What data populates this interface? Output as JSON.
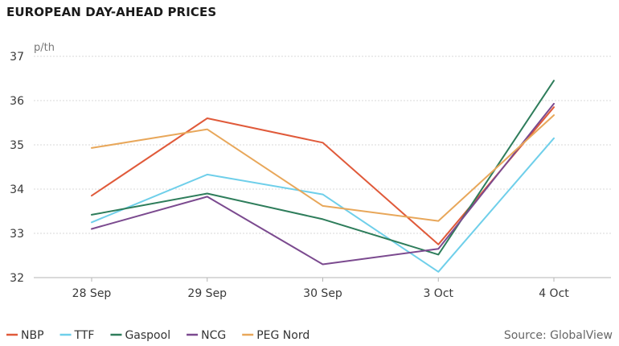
{
  "chart_data": {
    "type": "line",
    "title": "EUROPEAN DAY-AHEAD PRICES",
    "unit": "p/th",
    "categories": [
      "28 Sep",
      "29 Sep",
      "30 Sep",
      "3 Oct",
      "4 Oct"
    ],
    "ylim": [
      32,
      37
    ],
    "yticks": [
      32,
      33,
      34,
      35,
      36,
      37
    ],
    "grid": true,
    "legend_position": "bottom-left",
    "series": [
      {
        "name": "NBP",
        "color": "#e05a3a",
        "values": [
          33.85,
          35.6,
          35.05,
          32.75,
          35.85
        ]
      },
      {
        "name": "TTF",
        "color": "#6fcfea",
        "values": [
          33.25,
          34.33,
          33.88,
          32.13,
          35.15
        ]
      },
      {
        "name": "Gaspool",
        "color": "#2e7d5b",
        "values": [
          33.42,
          33.9,
          33.32,
          32.52,
          36.45
        ]
      },
      {
        "name": "NCG",
        "color": "#7b4a8f",
        "values": [
          33.1,
          33.83,
          32.3,
          32.65,
          35.93
        ]
      },
      {
        "name": "PEG Nord",
        "color": "#e8a75a",
        "values": [
          34.93,
          35.35,
          33.62,
          33.28,
          35.67
        ]
      }
    ],
    "source": "Source: GlobalView"
  }
}
